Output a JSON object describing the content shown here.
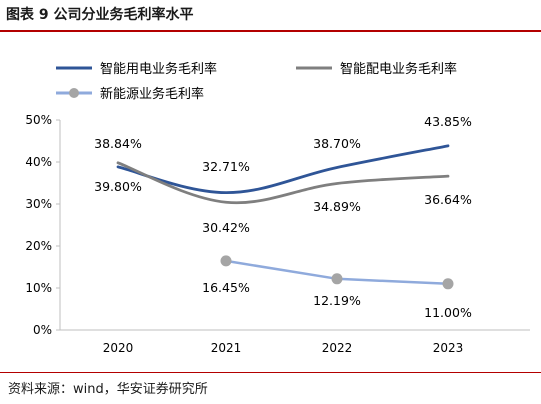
{
  "header": {
    "title": "图表 9 公司分业务毛利率水平"
  },
  "footer": {
    "source": "资料来源：wind，华安证券研究所"
  },
  "chart_data": {
    "type": "line",
    "x": [
      "2020",
      "2021",
      "2022",
      "2023"
    ],
    "ylim": [
      0,
      50
    ],
    "yticks": [
      0,
      10,
      20,
      30,
      40,
      50
    ],
    "ytick_labels": [
      "0%",
      "10%",
      "20%",
      "30%",
      "40%",
      "50%"
    ],
    "grid": false,
    "legend": "top",
    "series": [
      {
        "name": "智能用电业务毛利率",
        "color": "#2f5597",
        "marker": false,
        "values": [
          38.84,
          32.71,
          38.7,
          43.85
        ],
        "labels": [
          "38.84%",
          "32.71%",
          "38.70%",
          "43.85%"
        ]
      },
      {
        "name": "智能配电业务毛利率",
        "color": "#7f7f7f",
        "marker": false,
        "values": [
          39.8,
          30.42,
          34.89,
          36.64
        ],
        "labels": [
          "39.80%",
          "30.42%",
          "34.89%",
          "36.64%"
        ]
      },
      {
        "name": "新能源业务毛利率",
        "color": "#8faadc",
        "marker_color": "#a5a5a5",
        "marker": true,
        "values": [
          null,
          16.45,
          12.19,
          11.0
        ],
        "labels": [
          null,
          "16.45%",
          "12.19%",
          "11.00%"
        ]
      }
    ]
  }
}
